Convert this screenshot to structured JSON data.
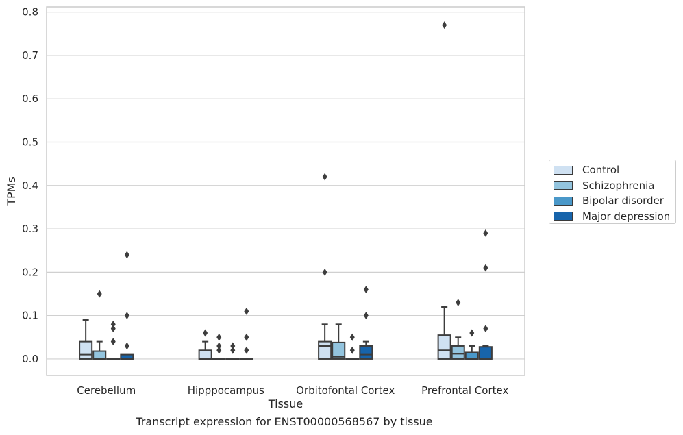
{
  "chart_data": {
    "type": "box",
    "xlabel": "Tissue",
    "ylabel": "TPMs",
    "ylim": [
      -0.038,
      0.812
    ],
    "yticks": [
      0.0,
      0.1,
      0.2,
      0.3,
      0.4,
      0.5,
      0.6,
      0.7,
      0.8
    ],
    "ytick_labels": [
      "0.0",
      "0.1",
      "0.2",
      "0.3",
      "0.4",
      "0.5",
      "0.6",
      "0.7",
      "0.8"
    ],
    "categories": [
      "Cerebellum",
      "Hipppocampus",
      "Orbitofontal Cortex",
      "Prefrontal Cortex"
    ],
    "grid": "horizontal",
    "legend_position": "right",
    "series": [
      {
        "name": "Control",
        "color": "#cfe1f2",
        "boxes": [
          {
            "q1": 0.0,
            "median": 0.01,
            "q3": 0.04,
            "whisker_low": 0.0,
            "whisker_high": 0.09,
            "outliers": []
          },
          {
            "q1": 0.0,
            "median": 0.0,
            "q3": 0.02,
            "whisker_low": 0.0,
            "whisker_high": 0.04,
            "outliers": [
              0.06
            ]
          },
          {
            "q1": 0.0,
            "median": 0.03,
            "q3": 0.04,
            "whisker_low": 0.0,
            "whisker_high": 0.08,
            "outliers": [
              0.2,
              0.42
            ]
          },
          {
            "q1": 0.0,
            "median": 0.02,
            "q3": 0.055,
            "whisker_low": 0.0,
            "whisker_high": 0.12,
            "outliers": [
              0.77
            ]
          }
        ]
      },
      {
        "name": "Schizophrenia",
        "color": "#93c4de",
        "boxes": [
          {
            "q1": 0.0,
            "median": 0.0,
            "q3": 0.018,
            "whisker_low": 0.0,
            "whisker_high": 0.04,
            "outliers": [
              0.15
            ]
          },
          {
            "q1": 0.0,
            "median": 0.0,
            "q3": 0.0,
            "whisker_low": 0.0,
            "whisker_high": 0.0,
            "outliers": [
              0.02,
              0.03,
              0.05
            ]
          },
          {
            "q1": 0.0,
            "median": 0.005,
            "q3": 0.038,
            "whisker_low": 0.0,
            "whisker_high": 0.08,
            "outliers": []
          },
          {
            "q1": 0.0,
            "median": 0.012,
            "q3": 0.03,
            "whisker_low": 0.0,
            "whisker_high": 0.05,
            "outliers": [
              0.13
            ]
          }
        ]
      },
      {
        "name": "Bipolar disorder",
        "color": "#4a98c9",
        "boxes": [
          {
            "q1": 0.0,
            "median": 0.0,
            "q3": 0.0,
            "whisker_low": 0.0,
            "whisker_high": 0.0,
            "outliers": [
              0.04,
              0.07,
              0.08
            ]
          },
          {
            "q1": 0.0,
            "median": 0.0,
            "q3": 0.0,
            "whisker_low": 0.0,
            "whisker_high": 0.0,
            "outliers": [
              0.02,
              0.03
            ]
          },
          {
            "q1": 0.0,
            "median": 0.0,
            "q3": 0.0,
            "whisker_low": 0.0,
            "whisker_high": 0.0,
            "outliers": [
              0.02,
              0.05
            ]
          },
          {
            "q1": 0.0,
            "median": 0.0,
            "q3": 0.015,
            "whisker_low": 0.0,
            "whisker_high": 0.03,
            "outliers": [
              0.06
            ]
          }
        ]
      },
      {
        "name": "Major depression",
        "color": "#1764ab",
        "boxes": [
          {
            "q1": 0.0,
            "median": 0.0,
            "q3": 0.01,
            "whisker_low": 0.0,
            "whisker_high": 0.01,
            "outliers": [
              0.03,
              0.1,
              0.24
            ]
          },
          {
            "q1": 0.0,
            "median": 0.0,
            "q3": 0.0,
            "whisker_low": 0.0,
            "whisker_high": 0.0,
            "outliers": [
              0.02,
              0.05,
              0.11
            ]
          },
          {
            "q1": 0.0,
            "median": 0.01,
            "q3": 0.03,
            "whisker_low": 0.0,
            "whisker_high": 0.04,
            "outliers": [
              0.1,
              0.16
            ]
          },
          {
            "q1": 0.0,
            "median": 0.0,
            "q3": 0.028,
            "whisker_low": 0.0,
            "whisker_high": 0.03,
            "outliers": [
              0.07,
              0.21,
              0.29
            ]
          }
        ]
      }
    ]
  },
  "caption": "Transcript expression for ENST00000568567 by tissue"
}
